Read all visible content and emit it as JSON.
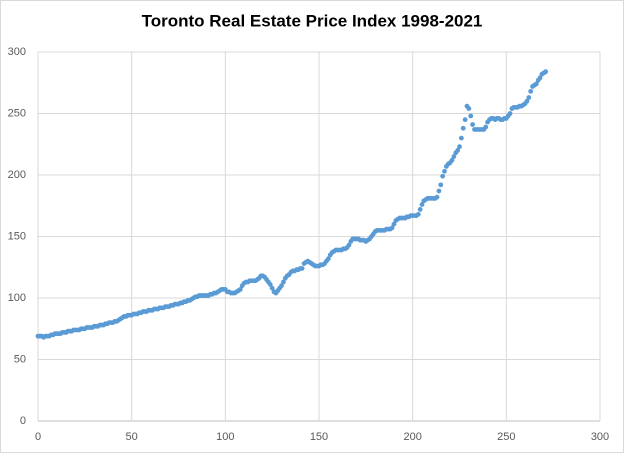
{
  "chart_data": {
    "type": "scatter",
    "title": "Toronto Real Estate Price Index 1998-2021",
    "color": "#5b9bd5",
    "grid": true,
    "xlim": [
      0,
      300
    ],
    "xticks": [
      0,
      50,
      100,
      150,
      200,
      250,
      300
    ],
    "ylim": [
      0,
      300
    ],
    "yticks": [
      0,
      50,
      100,
      150,
      200,
      250,
      300
    ],
    "x": [
      0,
      1,
      2,
      3,
      4,
      5,
      6,
      7,
      8,
      9,
      10,
      11,
      12,
      13,
      14,
      15,
      16,
      17,
      18,
      19,
      20,
      21,
      22,
      23,
      24,
      25,
      26,
      27,
      28,
      29,
      30,
      31,
      32,
      33,
      34,
      35,
      36,
      37,
      38,
      39,
      40,
      41,
      42,
      43,
      44,
      45,
      46,
      47,
      48,
      49,
      50,
      51,
      52,
      53,
      54,
      55,
      56,
      57,
      58,
      59,
      60,
      61,
      62,
      63,
      64,
      65,
      66,
      67,
      68,
      69,
      70,
      71,
      72,
      73,
      74,
      75,
      76,
      77,
      78,
      79,
      80,
      81,
      82,
      83,
      84,
      85,
      86,
      87,
      88,
      89,
      90,
      91,
      92,
      93,
      94,
      95,
      96,
      97,
      98,
      99,
      100,
      101,
      102,
      103,
      104,
      105,
      106,
      107,
      108,
      109,
      110,
      111,
      112,
      113,
      114,
      115,
      116,
      117,
      118,
      119,
      120,
      121,
      122,
      123,
      124,
      125,
      126,
      127,
      128,
      129,
      130,
      131,
      132,
      133,
      134,
      135,
      136,
      137,
      138,
      139,
      140,
      141,
      142,
      143,
      144,
      145,
      146,
      147,
      148,
      149,
      150,
      151,
      152,
      153,
      154,
      155,
      156,
      157,
      158,
      159,
      160,
      161,
      162,
      163,
      164,
      165,
      166,
      167,
      168,
      169,
      170,
      171,
      172,
      173,
      174,
      175,
      176,
      177,
      178,
      179,
      180,
      181,
      182,
      183,
      184,
      185,
      186,
      187,
      188,
      189,
      190,
      191,
      192,
      193,
      194,
      195,
      196,
      197,
      198,
      199,
      200,
      201,
      202,
      203,
      204,
      205,
      206,
      207,
      208,
      209,
      210,
      211,
      212,
      213,
      214,
      215,
      216,
      217,
      218,
      219,
      220,
      221,
      222,
      223,
      224,
      225,
      226,
      227,
      228,
      229,
      230,
      231,
      232,
      233,
      234,
      235,
      236,
      237,
      238,
      239,
      240,
      241,
      242,
      243,
      244,
      245,
      246,
      247,
      248,
      249,
      250,
      251,
      252,
      253,
      254,
      255,
      256,
      257,
      258,
      259,
      260,
      261,
      262,
      263,
      264,
      265,
      266,
      267,
      268,
      269,
      270,
      271
    ],
    "values": [
      69,
      69,
      69,
      68,
      69,
      69,
      69,
      70,
      70,
      71,
      71,
      71,
      71,
      72,
      72,
      72,
      73,
      73,
      73,
      74,
      74,
      74,
      74,
      75,
      75,
      75,
      76,
      76,
      76,
      76,
      77,
      77,
      77,
      78,
      78,
      78,
      79,
      79,
      80,
      80,
      80,
      81,
      81,
      82,
      83,
      84,
      85,
      85,
      86,
      86,
      86,
      87,
      87,
      87,
      88,
      88,
      89,
      89,
      89,
      90,
      90,
      90,
      91,
      91,
      91,
      92,
      92,
      92,
      93,
      93,
      93,
      94,
      94,
      95,
      95,
      95,
      96,
      96,
      97,
      97,
      98,
      98,
      99,
      100,
      101,
      101,
      102,
      102,
      102,
      102,
      102,
      102,
      103,
      103,
      104,
      104,
      105,
      106,
      107,
      107,
      107,
      105,
      105,
      104,
      104,
      104,
      105,
      106,
      107,
      110,
      112,
      113,
      113,
      114,
      114,
      114,
      114,
      115,
      116,
      118,
      118,
      117,
      115,
      113,
      111,
      108,
      105,
      104,
      106,
      108,
      110,
      113,
      116,
      118,
      119,
      121,
      122,
      122,
      123,
      123,
      124,
      124,
      128,
      129,
      130,
      129,
      128,
      127,
      126,
      126,
      126,
      127,
      127,
      128,
      130,
      132,
      135,
      137,
      138,
      139,
      139,
      139,
      139,
      140,
      140,
      141,
      143,
      146,
      148,
      148,
      148,
      148,
      147,
      147,
      147,
      146,
      147,
      148,
      150,
      152,
      154,
      155,
      155,
      155,
      155,
      155,
      156,
      156,
      156,
      157,
      160,
      163,
      164,
      165,
      165,
      165,
      165,
      166,
      166,
      167,
      167,
      167,
      167,
      168,
      172,
      176,
      179,
      180,
      181,
      181,
      181,
      181,
      181,
      182,
      187,
      192,
      199,
      203,
      207,
      209,
      210,
      212,
      215,
      218,
      220,
      223,
      230,
      238,
      245,
      256,
      254,
      248,
      241,
      237,
      237,
      237,
      237,
      237,
      237,
      239,
      243,
      245,
      246,
      246,
      245,
      246,
      246,
      245,
      245,
      246,
      246,
      248,
      250,
      254,
      255,
      255,
      255,
      256,
      256,
      257,
      258,
      260,
      263,
      268,
      272,
      273,
      274,
      277,
      279,
      282,
      283,
      284
    ]
  }
}
